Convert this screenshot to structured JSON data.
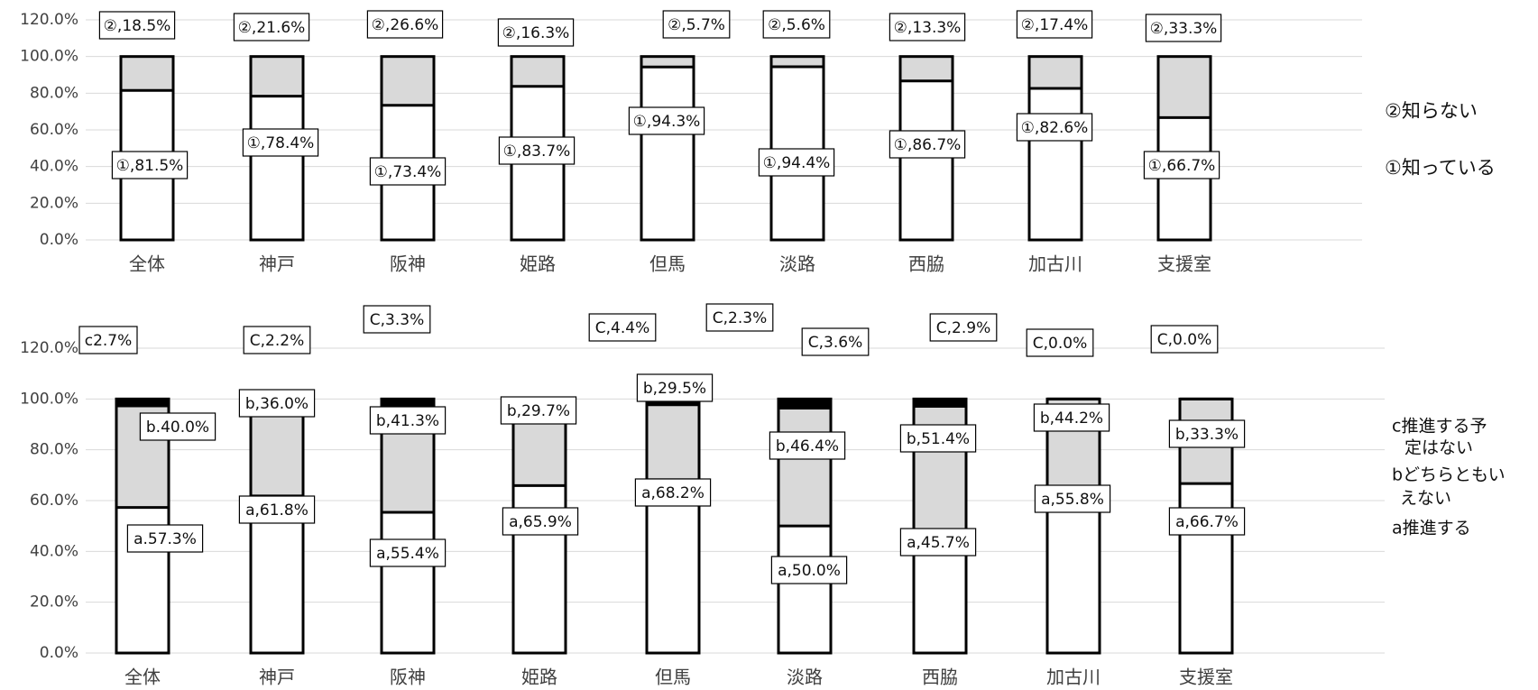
{
  "chart_data": [
    {
      "type": "bar",
      "stacked": true,
      "categories": [
        "全体",
        "神戸",
        "阪神",
        "姫路",
        "但馬",
        "淡路",
        "西脇",
        "加古川",
        "支援室"
      ],
      "y_ticks": [
        "0.0%",
        "20.0%",
        "40.0%",
        "60.0%",
        "80.0%",
        "100.0%",
        "120.0%"
      ],
      "ylim": [
        0,
        120
      ],
      "grid": true,
      "legend_position": "right",
      "series": [
        {
          "name": "①知っている",
          "color": "#ffffff",
          "values": [
            81.5,
            78.4,
            73.4,
            83.7,
            94.3,
            94.4,
            86.7,
            82.6,
            66.7
          ],
          "labels": [
            "①,81.5%",
            "①,78.4%",
            "①,73.4%",
            "①,83.7%",
            "①,94.3%",
            "①,94.4%",
            "①,86.7%",
            "①,82.6%",
            "①,66.7%"
          ]
        },
        {
          "name": "②知らない",
          "color": "#d9d9d9",
          "values": [
            18.5,
            21.6,
            26.6,
            16.3,
            5.7,
            5.6,
            13.3,
            17.4,
            33.3
          ],
          "labels": [
            "②,18.5%",
            "②,21.6%",
            "②,26.6%",
            "②,16.3%",
            "②,5.7%",
            "②,5.6%",
            "②,13.3%",
            "②,17.4%",
            "②,33.3%"
          ]
        }
      ],
      "legend": [
        "②知らない",
        "①知っている"
      ]
    },
    {
      "type": "bar",
      "stacked": true,
      "categories": [
        "全体",
        "神戸",
        "阪神",
        "姫路",
        "但馬",
        "淡路",
        "西脇",
        "加古川",
        "支援室"
      ],
      "y_ticks": [
        "0.0%",
        "20.0%",
        "40.0%",
        "60.0%",
        "80.0%",
        "100.0%",
        "120.0%"
      ],
      "ylim": [
        0,
        120
      ],
      "grid": true,
      "legend_position": "right",
      "series": [
        {
          "name": "a推進する",
          "color": "#ffffff",
          "values": [
            57.3,
            61.8,
            55.4,
            65.9,
            68.2,
            50.0,
            45.7,
            55.8,
            66.7
          ],
          "labels": [
            "a.57.3%",
            "a,61.8%",
            "a,55.4%",
            "a,65.9%",
            "a,68.2%",
            "a,50.0%",
            "a,45.7%",
            "a,55.8%",
            "a,66.7%"
          ]
        },
        {
          "name": "bどちらともいえない",
          "color": "#d9d9d9",
          "values": [
            40.0,
            36.0,
            41.3,
            29.7,
            29.5,
            46.4,
            51.4,
            44.2,
            33.3
          ],
          "labels": [
            "b.40.0%",
            "b,36.0%",
            "b,41.3%",
            "b,29.7%",
            "b,29.5%",
            "b,46.4%",
            "b,51.4%",
            "b,44.2%",
            "b,33.3%"
          ]
        },
        {
          "name": "c推進する予定はない",
          "color": "#000000",
          "values": [
            2.7,
            2.2,
            3.3,
            4.4,
            2.3,
            3.6,
            2.9,
            0.0,
            0.0
          ],
          "labels": [
            "c2.7%",
            "C,2.2%",
            "C,3.3%",
            "C,4.4%",
            "C,2.3%",
            "C,3.6%",
            "C,2.9%",
            "C,0.0%",
            "C,0.0%"
          ]
        }
      ],
      "legend_lines": [
        "c推進する予",
        "定はない",
        "bどちらともい",
        "えない",
        "a推進する"
      ]
    }
  ]
}
